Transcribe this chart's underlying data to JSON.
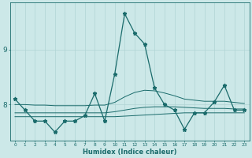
{
  "xlabel": "Humidex (Indice chaleur)",
  "x_values": [
    0,
    1,
    2,
    3,
    4,
    5,
    6,
    7,
    8,
    9,
    10,
    11,
    12,
    13,
    14,
    15,
    16,
    17,
    18,
    19,
    20,
    21,
    22,
    23
  ],
  "y_main": [
    8.1,
    7.9,
    7.7,
    7.7,
    7.5,
    7.7,
    7.7,
    7.8,
    8.2,
    7.7,
    8.55,
    9.65,
    9.3,
    9.1,
    8.3,
    8.0,
    7.9,
    7.55,
    7.85,
    7.85,
    8.05,
    8.35,
    7.9,
    7.9
  ],
  "y_low": [
    7.78,
    7.78,
    7.78,
    7.78,
    7.78,
    7.78,
    7.78,
    7.78,
    7.78,
    7.78,
    7.78,
    7.79,
    7.8,
    7.81,
    7.82,
    7.83,
    7.84,
    7.85,
    7.85,
    7.85,
    7.85,
    7.85,
    7.85,
    7.85
  ],
  "y_mid": [
    7.85,
    7.85,
    7.85,
    7.85,
    7.85,
    7.85,
    7.85,
    7.85,
    7.85,
    7.85,
    7.87,
    7.9,
    7.93,
    7.95,
    7.96,
    7.96,
    7.96,
    7.95,
    7.94,
    7.93,
    7.93,
    7.93,
    7.92,
    7.92
  ],
  "y_high": [
    8.0,
    8.0,
    7.99,
    7.99,
    7.98,
    7.98,
    7.98,
    7.98,
    7.99,
    7.99,
    8.04,
    8.14,
    8.22,
    8.26,
    8.25,
    8.21,
    8.16,
    8.1,
    8.08,
    8.06,
    8.06,
    8.06,
    8.04,
    8.02
  ],
  "ylim": [
    7.35,
    9.85
  ],
  "yticks": [
    8,
    9
  ],
  "bg_color": "#cce8e8",
  "line_color": "#1a6b6b",
  "grid_color": "#b0d4d4",
  "marker": "*",
  "marker_size": 3.5,
  "linewidth_main": 0.9,
  "linewidth_trend": 0.7
}
